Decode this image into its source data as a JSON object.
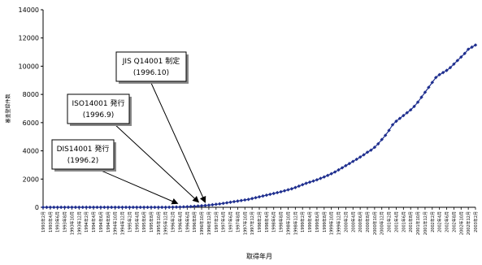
{
  "chart_data": {
    "type": "line",
    "title": "",
    "xlabel": "取得年月",
    "ylabel": "審査登録件数",
    "ylim": [
      0,
      14000
    ],
    "yticks": [
      0,
      2000,
      4000,
      6000,
      8000,
      10000,
      12000,
      14000
    ],
    "grid": false,
    "legend": "none",
    "marker": "diamond",
    "series_color": "#1f2f8f",
    "x_tick_labels": [
      "1993年2月",
      "1993年4月",
      "1993年6月",
      "1993年8月",
      "1993年10月",
      "1993年12月",
      "1994年2月",
      "1994年4月",
      "1994年6月",
      "1994年8月",
      "1994年10月",
      "1994年12月",
      "1995年2月",
      "1995年4月",
      "1995年6月",
      "1995年8月",
      "1995年10月",
      "1995年12月",
      "1996年2月",
      "1996年4月",
      "1996年6月",
      "1996年8月",
      "1996年10月",
      "1996年12月",
      "1997年2月",
      "1997年4月",
      "1997年6月",
      "1997年8月",
      "1997年10月",
      "1997年12月",
      "1998年2月",
      "1998年4月",
      "1998年6月",
      "1998年8月",
      "1998年10月",
      "1998年12月",
      "1999年2月",
      "1999年4月",
      "1999年6月",
      "1999年8月",
      "1999年10月",
      "1999年12月",
      "2000年2月",
      "2000年4月",
      "2000年6月",
      "2000年8月",
      "2000年10月",
      "2000年12月",
      "2001年2月",
      "2001年4月",
      "2001年6月",
      "2001年8月",
      "2001年10月",
      "2001年12月",
      "2002年2月",
      "2002年4月",
      "2002年6月",
      "2002年8月",
      "2002年10月",
      "2002年12月",
      "2003年2月"
    ],
    "x": [
      "1993-02",
      "1993-03",
      "1993-04",
      "1993-05",
      "1993-06",
      "1993-07",
      "1993-08",
      "1993-09",
      "1993-10",
      "1993-11",
      "1993-12",
      "1994-01",
      "1994-02",
      "1994-03",
      "1994-04",
      "1994-05",
      "1994-06",
      "1994-07",
      "1994-08",
      "1994-09",
      "1994-10",
      "1994-11",
      "1994-12",
      "1995-01",
      "1995-02",
      "1995-03",
      "1995-04",
      "1995-05",
      "1995-06",
      "1995-07",
      "1995-08",
      "1995-09",
      "1995-10",
      "1995-11",
      "1995-12",
      "1996-01",
      "1996-02",
      "1996-03",
      "1996-04",
      "1996-05",
      "1996-06",
      "1996-07",
      "1996-08",
      "1996-09",
      "1996-10",
      "1996-11",
      "1996-12",
      "1997-01",
      "1997-02",
      "1997-03",
      "1997-04",
      "1997-05",
      "1997-06",
      "1997-07",
      "1997-08",
      "1997-09",
      "1997-10",
      "1997-11",
      "1997-12",
      "1998-01",
      "1998-02",
      "1998-03",
      "1998-04",
      "1998-05",
      "1998-06",
      "1998-07",
      "1998-08",
      "1998-09",
      "1998-10",
      "1998-11",
      "1998-12",
      "1999-01",
      "1999-02",
      "1999-03",
      "1999-04",
      "1999-05",
      "1999-06",
      "1999-07",
      "1999-08",
      "1999-09",
      "1999-10",
      "1999-11",
      "1999-12",
      "2000-01",
      "2000-02",
      "2000-03",
      "2000-04",
      "2000-05",
      "2000-06",
      "2000-07",
      "2000-08",
      "2000-09",
      "2000-10",
      "2000-11",
      "2000-12",
      "2001-01",
      "2001-02",
      "2001-03",
      "2001-04",
      "2001-05",
      "2001-06",
      "2001-07",
      "2001-08",
      "2001-09",
      "2001-10",
      "2001-11",
      "2001-12",
      "2002-01",
      "2002-02",
      "2002-03",
      "2002-04",
      "2002-05",
      "2002-06",
      "2002-07",
      "2002-08",
      "2002-09",
      "2002-10",
      "2002-11",
      "2002-12",
      "2003-01",
      "2003-02"
    ],
    "values": [
      0,
      0,
      0,
      0,
      0,
      0,
      0,
      0,
      0,
      0,
      0,
      0,
      0,
      0,
      0,
      0,
      0,
      0,
      0,
      0,
      0,
      0,
      0,
      0,
      0,
      0,
      0,
      0,
      0,
      0,
      0,
      0,
      0,
      0,
      0,
      5,
      10,
      15,
      20,
      30,
      40,
      50,
      70,
      90,
      110,
      130,
      150,
      180,
      210,
      240,
      280,
      320,
      360,
      400,
      440,
      480,
      520,
      560,
      620,
      680,
      740,
      800,
      860,
      920,
      980,
      1040,
      1100,
      1170,
      1240,
      1310,
      1400,
      1500,
      1600,
      1700,
      1780,
      1860,
      1950,
      2050,
      2150,
      2260,
      2380,
      2500,
      2650,
      2800,
      2950,
      3100,
      3250,
      3400,
      3560,
      3720,
      3900,
      4050,
      4250,
      4500,
      4800,
      5100,
      5450,
      5850,
      6100,
      6300,
      6500,
      6700,
      6900,
      7150,
      7450,
      7800,
      8150,
      8500,
      8850,
      9200,
      9400,
      9550,
      9700,
      9900,
      10150,
      10400,
      10650,
      10900,
      11200,
      11350,
      11500
    ],
    "annotations": [
      {
        "text": "DIS14001 発行",
        "date": "(1996.2)",
        "x": "1996-02"
      },
      {
        "text": "ISO14001 発行",
        "date": "(1996.9)",
        "x": "1996-09"
      },
      {
        "text": "JIS Q14001 制定",
        "date": "(1996.10)",
        "x": "1996-10"
      }
    ]
  }
}
